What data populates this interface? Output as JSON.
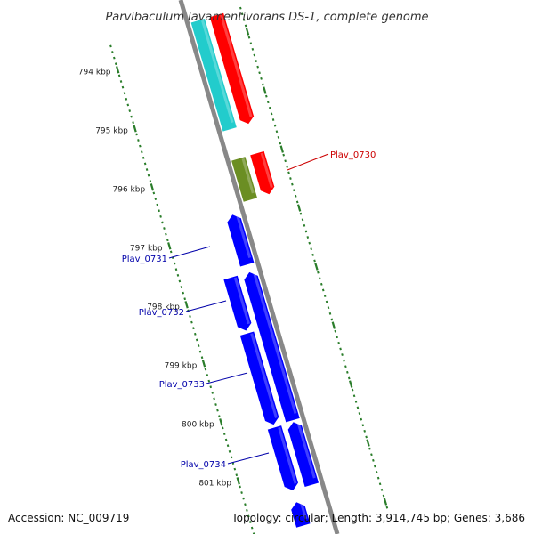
{
  "title": "Parvibaculum lavamentivorans DS-1, complete genome",
  "footer": {
    "accession": "Accession: NC_009719",
    "summary": "Topology: circular; Length: 3,914,745 bp; Genes: 3,686"
  },
  "colors": {
    "backbone": "#888888",
    "tick": "#2a7d2a",
    "red_gene": "#ff0000",
    "cyan_gene": "#22cccc",
    "olive_gene": "#6b8e23",
    "blue_gene": "#0000ff",
    "red_label": "#cc0000",
    "blue_label": "#0000aa"
  },
  "scale": {
    "unit": "kbp",
    "ticks": [
      {
        "kbp": 794,
        "label": "794 kbp"
      },
      {
        "kbp": 795,
        "label": "795 kbp"
      },
      {
        "kbp": 796,
        "label": "796 kbp"
      },
      {
        "kbp": 797,
        "label": "797 kbp"
      },
      {
        "kbp": 798,
        "label": "798 kbp"
      },
      {
        "kbp": 799,
        "label": "799 kbp"
      },
      {
        "kbp": 800,
        "label": "800 kbp"
      },
      {
        "kbp": 801,
        "label": "801 kbp"
      }
    ]
  },
  "features": [
    {
      "strand": "forward",
      "color": "red_gene",
      "start_kbp": 793.6,
      "end_kbp": 795.45,
      "arrow": "end",
      "label": ""
    },
    {
      "strand": "forward",
      "color": "cyan_gene",
      "start_kbp": 793.6,
      "end_kbp": 795.45,
      "arrow": "none",
      "label": ""
    },
    {
      "strand": "forward",
      "color": "red_gene",
      "start_kbp": 795.95,
      "end_kbp": 796.65,
      "arrow": "end",
      "label": "Plav_0730"
    },
    {
      "strand": "forward",
      "color": "olive_gene",
      "start_kbp": 795.95,
      "end_kbp": 796.65,
      "arrow": "none",
      "label": ""
    },
    {
      "strand": "reverse",
      "color": "blue_gene",
      "start_kbp": 796.8,
      "end_kbp": 797.65,
      "arrow": "start",
      "label": "Plav_0731"
    },
    {
      "strand": "reverse",
      "color": "blue_gene",
      "start_kbp": 797.78,
      "end_kbp": 800.3,
      "arrow": "start",
      "label": "Plav_0732"
    },
    {
      "strand": "reverse",
      "color": "blue_gene",
      "start_kbp": 797.78,
      "end_kbp": 798.68,
      "arrow": "end",
      "label": "Plav_0733"
    },
    {
      "strand": "reverse",
      "color": "blue_gene",
      "start_kbp": 798.73,
      "end_kbp": 800.28,
      "arrow": "end",
      "label": ""
    },
    {
      "strand": "reverse",
      "color": "blue_gene",
      "start_kbp": 800.33,
      "end_kbp": 801.4,
      "arrow": "start",
      "label": "Plav_0734"
    },
    {
      "strand": "reverse",
      "color": "blue_gene",
      "start_kbp": 800.33,
      "end_kbp": 801.4,
      "arrow": "end",
      "label": ""
    },
    {
      "strand": "reverse",
      "color": "blue_gene",
      "start_kbp": 801.6,
      "end_kbp": 802.0,
      "arrow": "start",
      "label": ""
    }
  ]
}
